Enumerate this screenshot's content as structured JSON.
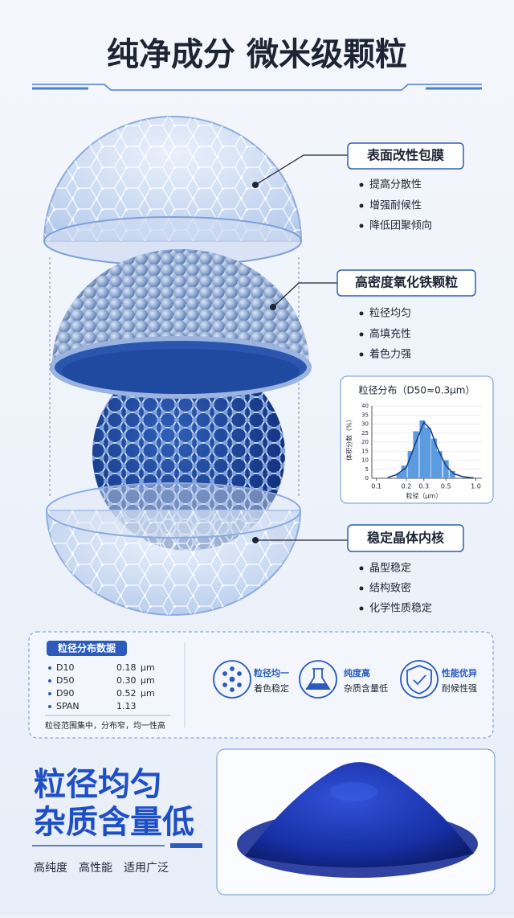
{
  "title": "纯净成分 微米级颗粒",
  "callouts": [
    {
      "label": "表面改性包膜",
      "items": [
        "提高分散性",
        "增强耐候性",
        "降低团聚倾向"
      ]
    },
    {
      "label": "高密度氧化铁颗粒",
      "items": [
        "粒径均匀",
        "高填充性",
        "着色力强"
      ]
    },
    {
      "label": "稳定晶体内核",
      "items": [
        "晶型稳定",
        "结构致密",
        "化学性质稳定"
      ]
    }
  ],
  "chart_data": {
    "type": "bar",
    "title": "粒径分布（D50≈0.3μm）",
    "y_label": "体积分数（%）",
    "x_label": "粒径（μm）",
    "log_x": true,
    "xlim": [
      0.09,
      1.15
    ],
    "ylim": [
      0,
      40
    ],
    "yticks": [
      0,
      5,
      10,
      15,
      20,
      25,
      30,
      35,
      40
    ],
    "xticks": [
      0.1,
      0.2,
      0.3,
      0.5,
      {
        "value": 1,
        "label": "1.0"
      }
    ],
    "x": [
      0.17,
      0.19,
      0.22,
      0.25,
      0.29,
      0.33,
      0.38,
      0.43,
      0.5,
      0.58
    ],
    "values": [
      3,
      7,
      15,
      26,
      32,
      28,
      22,
      15,
      10,
      4
    ],
    "color": "#5b9be0",
    "curve": {
      "x": [
        0.13,
        0.16,
        0.2,
        0.25,
        0.3,
        0.35,
        0.4,
        0.5,
        0.6,
        0.75,
        0.95
      ],
      "values": [
        0.5,
        2,
        6,
        20,
        31,
        27,
        18,
        7,
        2.5,
        0.8,
        0.2
      ],
      "color": "#1b3f8e"
    }
  },
  "data_panel": {
    "title": "粒径分布数据",
    "rows": [
      [
        "D10",
        "0.18",
        "μm"
      ],
      [
        "D50",
        "0.30",
        "μm"
      ],
      [
        "D90",
        "0.52",
        "μm"
      ],
      [
        "SPAN",
        "1.13"
      ]
    ],
    "note": "粒径范围集中，分布窄，均一性高"
  },
  "features": [
    {
      "title": "粒径均一",
      "subtitle": "着色稳定"
    },
    {
      "title": "纯度高",
      "subtitle": "杂质含量低"
    },
    {
      "title": "性能优异",
      "subtitle": "耐候性强"
    }
  ],
  "slogan": [
    "粒径均匀",
    "杂质含量低"
  ],
  "tags": [
    "高纯度",
    "高性能",
    "适用广泛"
  ]
}
